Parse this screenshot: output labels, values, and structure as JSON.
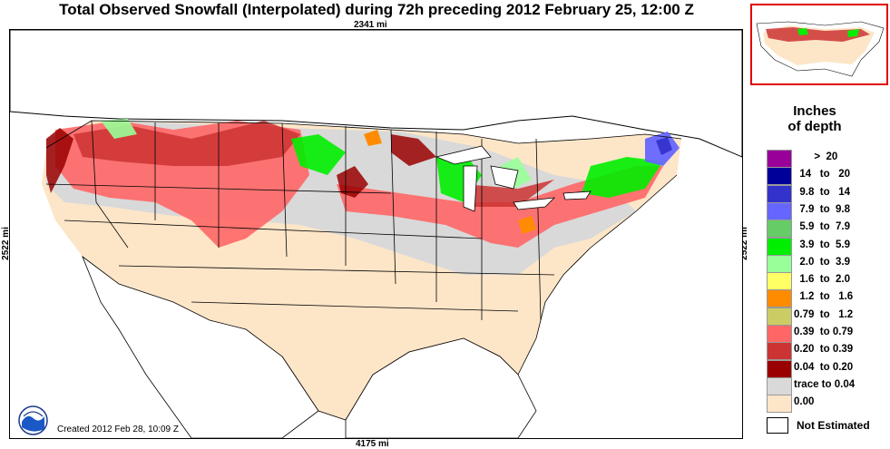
{
  "title": "Total Observed Snowfall (Interpolated) during 72h preceding 2012 February 25, 12:00 Z",
  "scale": {
    "top": "2341 mi",
    "bottom": "4175 mi",
    "left": "2522 mi",
    "right": "2522 mi"
  },
  "created": "Created 2012 Feb 28, 10:09 Z",
  "logo_icon": "noaa-logo-icon",
  "legend": {
    "title_line1": "Inches",
    "title_line2": "of depth",
    "items": [
      {
        "label": "       >  20",
        "color": "#990099"
      },
      {
        "label": "  14   to   20",
        "color": "#000099"
      },
      {
        "label": "  9.8  to   14",
        "color": "#3333cc"
      },
      {
        "label": "  7.9  to  9.8",
        "color": "#6666ff"
      },
      {
        "label": "  5.9  to  7.9",
        "color": "#66cc66"
      },
      {
        "label": "  3.9  to  5.9",
        "color": "#00ee00"
      },
      {
        "label": "  2.0  to  3.9",
        "color": "#99ff99"
      },
      {
        "label": "  1.6  to  2.0",
        "color": "#ffff66"
      },
      {
        "label": "  1.2  to   1.6",
        "color": "#ff8c00"
      },
      {
        "label": "0.79  to   1.2",
        "color": "#cccc66"
      },
      {
        "label": "0.39  to 0.79",
        "color": "#ff6666"
      },
      {
        "label": "0.20  to 0.39",
        "color": "#cc3333"
      },
      {
        "label": "0.04  to 0.20",
        "color": "#990000"
      },
      {
        "label": "trace to 0.04",
        "color": "#d9d9d9"
      },
      {
        "label": "0.00",
        "color": "#fde6c8"
      }
    ],
    "not_estimated": "Not Estimated"
  }
}
